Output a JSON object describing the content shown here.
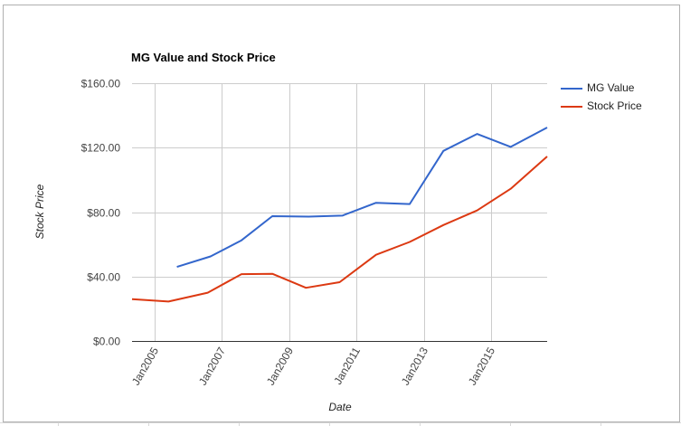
{
  "chart_data": {
    "type": "line",
    "title": "MG Value and Stock Price",
    "xlabel": "Date",
    "ylabel": "Stock Price",
    "x_range": [
      "2004-05",
      "2016-09"
    ],
    "ylim": [
      0,
      160
    ],
    "y_ticks": [
      "$0.00",
      "$40.00",
      "$80.00",
      "$120.00",
      "$160.00"
    ],
    "x_ticks": [
      {
        "date": "2005-01",
        "label": "Jan2005"
      },
      {
        "date": "2007-01",
        "label": "Jan2007"
      },
      {
        "date": "2009-01",
        "label": "Jan2009"
      },
      {
        "date": "2011-01",
        "label": "Jan2011"
      },
      {
        "date": "2013-01",
        "label": "Jan2013"
      },
      {
        "date": "2015-01",
        "label": "Jan2015"
      }
    ],
    "grid": true,
    "legend_position": "right",
    "series": [
      {
        "name": "MG Value",
        "color": "#3366cc",
        "points": [
          {
            "x": "2005-09",
            "y": 46
          },
          {
            "x": "2006-09",
            "y": 52.5
          },
          {
            "x": "2007-08",
            "y": 62.5
          },
          {
            "x": "2008-07",
            "y": 77.5
          },
          {
            "x": "2009-08",
            "y": 77.2
          },
          {
            "x": "2010-08",
            "y": 77.8
          },
          {
            "x": "2011-08",
            "y": 85.8
          },
          {
            "x": "2012-08",
            "y": 85
          },
          {
            "x": "2013-08",
            "y": 118
          },
          {
            "x": "2014-08",
            "y": 128.5
          },
          {
            "x": "2015-08",
            "y": 120.5
          },
          {
            "x": "2016-09",
            "y": 132.5
          }
        ]
      },
      {
        "name": "Stock Price",
        "color": "#dc3912",
        "points": [
          {
            "x": "2004-05",
            "y": 26
          },
          {
            "x": "2005-06",
            "y": 24.5
          },
          {
            "x": "2006-08",
            "y": 30
          },
          {
            "x": "2007-08",
            "y": 41.5
          },
          {
            "x": "2008-07",
            "y": 41.7
          },
          {
            "x": "2009-07",
            "y": 33
          },
          {
            "x": "2010-07",
            "y": 36.5
          },
          {
            "x": "2011-08",
            "y": 53.5
          },
          {
            "x": "2012-08",
            "y": 61.5
          },
          {
            "x": "2013-08",
            "y": 72
          },
          {
            "x": "2014-08",
            "y": 81
          },
          {
            "x": "2015-08",
            "y": 94.5
          },
          {
            "x": "2016-09",
            "y": 114.5
          }
        ]
      }
    ]
  }
}
